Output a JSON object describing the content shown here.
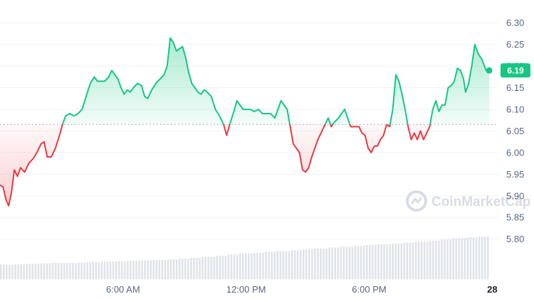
{
  "chart_data": {
    "type": "line",
    "baseline": 6.065,
    "ylim": [
      5.76,
      6.32
    ],
    "y_ticks": [
      "6.30",
      "6.25",
      "6.20",
      "6.15",
      "6.10",
      "6.05",
      "6.00",
      "5.95",
      "5.90",
      "5.85",
      "5.80"
    ],
    "y_tick_values": [
      6.3,
      6.25,
      6.2,
      6.15,
      6.1,
      6.05,
      6.0,
      5.95,
      5.9,
      5.85,
      5.8
    ],
    "x_ticks": [
      {
        "label": "6:00 AM",
        "t": 6
      },
      {
        "label": "12:00 PM",
        "t": 12
      },
      {
        "label": "6:00 PM",
        "t": 18
      },
      {
        "label": "28",
        "t": 24
      }
    ],
    "xlim": [
      0,
      24.3
    ],
    "current_price": "6.19",
    "watermark": "CoinMarketCap",
    "up_color": "#16c784",
    "down_color": "#ea3943",
    "series": [
      {
        "points": [
          [
            0.0,
            5.925
          ],
          [
            0.15,
            5.92
          ],
          [
            0.3,
            5.89
          ],
          [
            0.42,
            5.877
          ],
          [
            0.55,
            5.905
          ],
          [
            0.7,
            5.96
          ],
          [
            0.85,
            5.945
          ],
          [
            1.0,
            5.965
          ],
          [
            1.2,
            5.955
          ],
          [
            1.4,
            5.975
          ],
          [
            1.6,
            5.985
          ],
          [
            1.8,
            6.0
          ],
          [
            2.0,
            6.02
          ],
          [
            2.15,
            6.025
          ],
          [
            2.3,
            5.99
          ],
          [
            2.5,
            5.99
          ],
          [
            2.7,
            6.01
          ],
          [
            2.9,
            6.04
          ],
          [
            3.05,
            6.065
          ],
          [
            3.2,
            6.085
          ],
          [
            3.4,
            6.09
          ],
          [
            3.6,
            6.085
          ],
          [
            3.8,
            6.09
          ],
          [
            4.0,
            6.1
          ],
          [
            4.2,
            6.13
          ],
          [
            4.4,
            6.16
          ],
          [
            4.6,
            6.175
          ],
          [
            4.75,
            6.165
          ],
          [
            4.9,
            6.165
          ],
          [
            5.1,
            6.165
          ],
          [
            5.3,
            6.175
          ],
          [
            5.45,
            6.19
          ],
          [
            5.6,
            6.18
          ],
          [
            5.75,
            6.17
          ],
          [
            5.9,
            6.15
          ],
          [
            6.05,
            6.135
          ],
          [
            6.2,
            6.145
          ],
          [
            6.35,
            6.14
          ],
          [
            6.5,
            6.15
          ],
          [
            6.7,
            6.16
          ],
          [
            6.9,
            6.155
          ],
          [
            7.05,
            6.13
          ],
          [
            7.2,
            6.125
          ],
          [
            7.4,
            6.145
          ],
          [
            7.6,
            6.16
          ],
          [
            7.8,
            6.17
          ],
          [
            8.0,
            6.18
          ],
          [
            8.15,
            6.2
          ],
          [
            8.3,
            6.265
          ],
          [
            8.45,
            6.255
          ],
          [
            8.6,
            6.235
          ],
          [
            8.75,
            6.24
          ],
          [
            8.9,
            6.245
          ],
          [
            9.05,
            6.22
          ],
          [
            9.2,
            6.185
          ],
          [
            9.35,
            6.16
          ],
          [
            9.5,
            6.15
          ],
          [
            9.65,
            6.14
          ],
          [
            9.8,
            6.135
          ],
          [
            9.95,
            6.145
          ],
          [
            10.1,
            6.14
          ],
          [
            10.3,
            6.13
          ],
          [
            10.5,
            6.1
          ],
          [
            10.7,
            6.085
          ],
          [
            10.9,
            6.065
          ],
          [
            11.05,
            6.04
          ],
          [
            11.2,
            6.065
          ],
          [
            11.4,
            6.095
          ],
          [
            11.55,
            6.12
          ],
          [
            11.7,
            6.11
          ],
          [
            11.85,
            6.1
          ],
          [
            12.0,
            6.1
          ],
          [
            12.2,
            6.1
          ],
          [
            12.4,
            6.095
          ],
          [
            12.6,
            6.1
          ],
          [
            12.8,
            6.09
          ],
          [
            13.0,
            6.09
          ],
          [
            13.2,
            6.09
          ],
          [
            13.4,
            6.08
          ],
          [
            13.55,
            6.1
          ],
          [
            13.7,
            6.12
          ],
          [
            13.85,
            6.11
          ],
          [
            14.0,
            6.1
          ],
          [
            14.15,
            6.06
          ],
          [
            14.3,
            6.02
          ],
          [
            14.45,
            6.01
          ],
          [
            14.6,
            6.0
          ],
          [
            14.75,
            5.96
          ],
          [
            14.9,
            5.955
          ],
          [
            15.05,
            5.965
          ],
          [
            15.2,
            5.99
          ],
          [
            15.35,
            6.01
          ],
          [
            15.5,
            6.03
          ],
          [
            15.65,
            6.045
          ],
          [
            15.8,
            6.06
          ],
          [
            16.0,
            6.08
          ],
          [
            16.15,
            6.06
          ],
          [
            16.3,
            6.07
          ],
          [
            16.5,
            6.08
          ],
          [
            16.65,
            6.09
          ],
          [
            16.8,
            6.1
          ],
          [
            16.95,
            6.08
          ],
          [
            17.1,
            6.06
          ],
          [
            17.3,
            6.06
          ],
          [
            17.5,
            6.06
          ],
          [
            17.65,
            6.045
          ],
          [
            17.8,
            6.04
          ],
          [
            17.95,
            6.01
          ],
          [
            18.1,
            6.0
          ],
          [
            18.25,
            6.015
          ],
          [
            18.4,
            6.015
          ],
          [
            18.55,
            6.03
          ],
          [
            18.7,
            6.04
          ],
          [
            18.85,
            6.065
          ],
          [
            19.0,
            6.06
          ],
          [
            19.15,
            6.1
          ],
          [
            19.3,
            6.18
          ],
          [
            19.45,
            6.165
          ],
          [
            19.6,
            6.135
          ],
          [
            19.75,
            6.1
          ],
          [
            19.9,
            6.06
          ],
          [
            20.05,
            6.03
          ],
          [
            20.2,
            6.045
          ],
          [
            20.35,
            6.03
          ],
          [
            20.5,
            6.05
          ],
          [
            20.65,
            6.03
          ],
          [
            20.8,
            6.045
          ],
          [
            20.95,
            6.06
          ],
          [
            21.1,
            6.1
          ],
          [
            21.25,
            6.12
          ],
          [
            21.4,
            6.095
          ],
          [
            21.55,
            6.11
          ],
          [
            21.7,
            6.11
          ],
          [
            21.85,
            6.15
          ],
          [
            22.0,
            6.155
          ],
          [
            22.15,
            6.165
          ],
          [
            22.3,
            6.195
          ],
          [
            22.45,
            6.19
          ],
          [
            22.6,
            6.17
          ],
          [
            22.7,
            6.14
          ],
          [
            22.85,
            6.16
          ],
          [
            23.0,
            6.2
          ],
          [
            23.15,
            6.25
          ],
          [
            23.3,
            6.23
          ],
          [
            23.5,
            6.215
          ],
          [
            23.7,
            6.19
          ],
          [
            23.85,
            6.19
          ]
        ]
      }
    ],
    "volume_bar_count": 170,
    "volume": [
      0.34,
      0.35,
      0.36,
      0.37,
      0.38,
      0.38,
      0.39,
      0.4,
      0.41,
      0.42,
      0.43,
      0.44,
      0.45,
      0.46,
      0.48,
      0.5,
      0.52,
      0.55,
      0.58,
      0.6,
      0.62,
      0.64,
      0.66,
      0.68,
      0.7,
      0.72,
      0.74,
      0.76,
      0.78,
      0.8,
      0.82,
      0.84,
      0.86,
      0.88,
      0.9,
      0.93,
      0.96,
      0.98,
      1.0
    ]
  }
}
